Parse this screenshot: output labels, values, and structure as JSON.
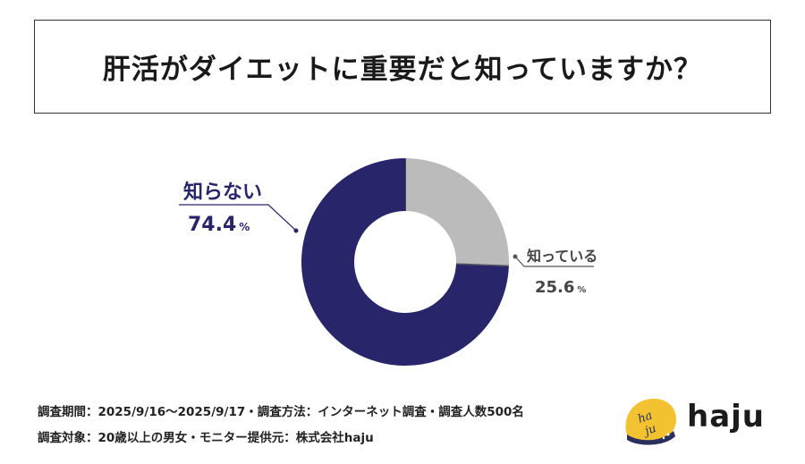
{
  "title": "肝活がダイエットに重要だと知っていますか？",
  "chart_data": {
    "type": "pie",
    "style": "donut",
    "slices": [
      {
        "label": "知っている",
        "value": 25.6,
        "value_text": "25.6",
        "color": "#bbbbbb"
      },
      {
        "label": "知らない",
        "value": 74.4,
        "value_text": "74.4",
        "color": "#28256a"
      }
    ],
    "unit": "%"
  },
  "footer": {
    "line1": "調査期間：2025/9/16～2025/9/17・調査方法：インターネット調査・調査人数500名",
    "line2": "調査対象：20歳以上の男女・モニター提供元：株式会社haju"
  },
  "logo": {
    "name": "haju",
    "mark_text": "haju",
    "mark_color": "#f2c230",
    "mark_dark": "#2a2f5e"
  }
}
